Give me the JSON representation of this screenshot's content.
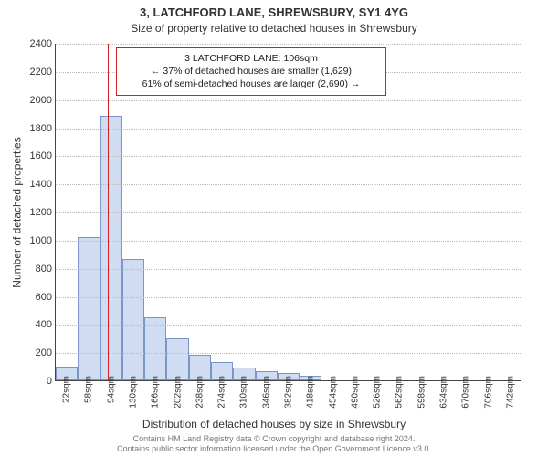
{
  "titles": {
    "address": "3, LATCHFORD LANE, SHREWSBURY, SY1 4YG",
    "subtitle": "Size of property relative to detached houses in Shrewsbury"
  },
  "chart": {
    "type": "histogram",
    "ylabel": "Number of detached properties",
    "xlabel": "Distribution of detached houses by size in Shrewsbury",
    "ylim": [
      0,
      2400
    ],
    "ytick_step": 200,
    "plot_bg": "#ffffff",
    "grid_color": "#bbbbbb",
    "bar_fill": "#cfdcf2",
    "bar_stroke": "#7b95c9",
    "bar_width_rel": 1.0,
    "xticks": [
      "22sqm",
      "58sqm",
      "94sqm",
      "130sqm",
      "166sqm",
      "202sqm",
      "238sqm",
      "274sqm",
      "310sqm",
      "346sqm",
      "382sqm",
      "418sqm",
      "454sqm",
      "490sqm",
      "526sqm",
      "562sqm",
      "598sqm",
      "634sqm",
      "670sqm",
      "706sqm",
      "742sqm"
    ],
    "values": [
      100,
      1020,
      1880,
      860,
      450,
      300,
      180,
      130,
      90,
      65,
      50,
      35,
      0,
      0,
      0,
      0,
      0,
      0,
      0,
      0,
      0
    ],
    "vline_index": 2.35,
    "vline_color": "#d42020"
  },
  "annotation": {
    "box_border": "#d42020",
    "line1": "3 LATCHFORD LANE: 106sqm",
    "line2": "← 37% of detached houses are smaller (1,629)",
    "line3": "61% of semi-detached houses are larger (2,690) →"
  },
  "footer": {
    "line1": "Contains HM Land Registry data © Crown copyright and database right 2024.",
    "line2": "Contains public sector information licensed under the Open Government Licence v3.0."
  }
}
